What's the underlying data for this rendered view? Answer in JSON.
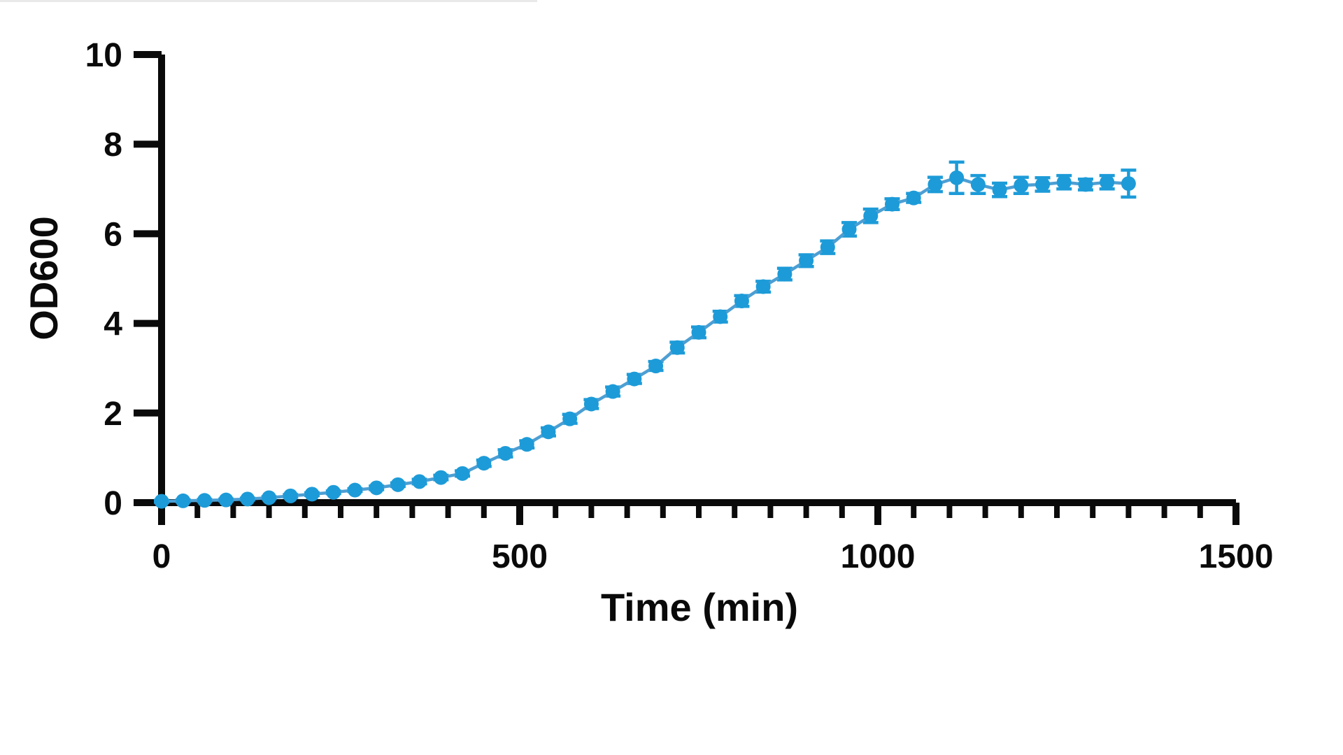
{
  "figure": {
    "background": "#ffffff",
    "axis_color": "#0a0a0a",
    "marker_color": "#1d9bd8",
    "line_color": "#4d9fd3",
    "error_bar_color": "#1d9bd8"
  },
  "chart_data": {
    "type": "line",
    "title": "",
    "xlabel": "Time (min)",
    "ylabel": "OD600",
    "xlim": [
      0,
      1500
    ],
    "ylim": [
      0,
      10
    ],
    "x_major_ticks": [
      0,
      500,
      1000,
      1500
    ],
    "x_minor_tick_interval": 50,
    "y_major_ticks": [
      0,
      2,
      4,
      6,
      8,
      10
    ],
    "x_tick_labels": [
      "0",
      "500",
      "1000",
      "1500"
    ],
    "y_tick_labels": [
      "0",
      "2",
      "4",
      "6",
      "8",
      "10"
    ],
    "grid": false,
    "legend_position": "none",
    "error_bars": true,
    "series": [
      {
        "name": "OD600",
        "marker": "circle",
        "x": [
          0,
          30,
          60,
          90,
          120,
          150,
          180,
          210,
          240,
          270,
          300,
          330,
          360,
          390,
          420,
          450,
          480,
          510,
          540,
          570,
          600,
          630,
          660,
          690,
          720,
          750,
          780,
          810,
          840,
          870,
          900,
          930,
          960,
          990,
          1020,
          1050,
          1080,
          1110,
          1140,
          1170,
          1200,
          1230,
          1260,
          1290,
          1320,
          1350
        ],
        "y": [
          0.03,
          0.04,
          0.05,
          0.06,
          0.08,
          0.11,
          0.15,
          0.19,
          0.23,
          0.28,
          0.33,
          0.4,
          0.47,
          0.56,
          0.65,
          0.88,
          1.1,
          1.3,
          1.58,
          1.87,
          2.2,
          2.48,
          2.76,
          3.05,
          3.46,
          3.8,
          4.15,
          4.5,
          4.82,
          5.1,
          5.4,
          5.7,
          6.1,
          6.4,
          6.66,
          6.8,
          7.1,
          7.25,
          7.1,
          6.98,
          7.08,
          7.1,
          7.15,
          7.1,
          7.15,
          7.12
        ],
        "yerr": [
          0.02,
          0.02,
          0.02,
          0.02,
          0.02,
          0.02,
          0.03,
          0.03,
          0.03,
          0.03,
          0.04,
          0.04,
          0.05,
          0.05,
          0.06,
          0.07,
          0.08,
          0.08,
          0.09,
          0.1,
          0.1,
          0.1,
          0.1,
          0.1,
          0.12,
          0.12,
          0.12,
          0.12,
          0.12,
          0.13,
          0.13,
          0.14,
          0.15,
          0.15,
          0.12,
          0.1,
          0.16,
          0.35,
          0.2,
          0.15,
          0.18,
          0.15,
          0.15,
          0.12,
          0.15,
          0.3
        ]
      }
    ]
  }
}
